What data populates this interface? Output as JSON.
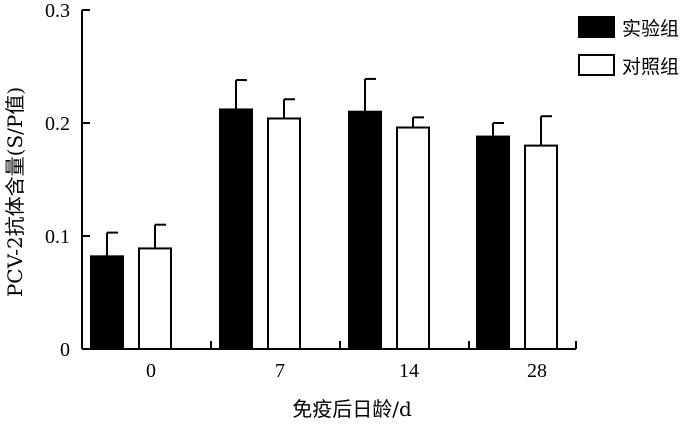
{
  "chart_data": {
    "type": "bar",
    "title": "",
    "xlabel": "免疫后日龄/d",
    "ylabel": "PCV-2抗体含量(S/P值)",
    "categories": [
      "0",
      "7",
      "14",
      "28"
    ],
    "ylim": [
      0,
      0.3
    ],
    "yticks": [
      "0",
      "0.1",
      "0.2",
      "0.3"
    ],
    "series": [
      {
        "name": "实验组",
        "values": [
          0.082,
          0.212,
          0.21,
          0.188
        ],
        "errors": [
          0.021,
          0.026,
          0.029,
          0.012
        ],
        "fill": "#000000"
      },
      {
        "name": "对照组",
        "values": [
          0.089,
          0.204,
          0.196,
          0.18
        ],
        "errors": [
          0.021,
          0.017,
          0.009,
          0.026
        ],
        "fill": "#ffffff"
      }
    ],
    "legend_position": "top-right",
    "grid": false
  }
}
